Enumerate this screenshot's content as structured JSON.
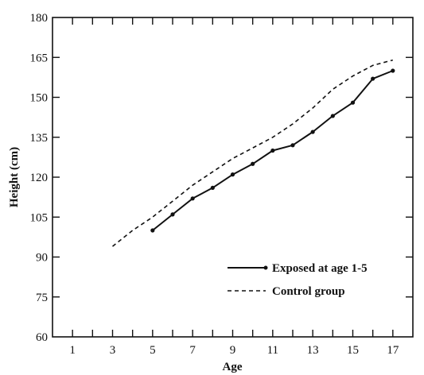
{
  "chart_data": {
    "type": "line",
    "title": "",
    "xlabel": "Age",
    "ylabel": "Height (cm)",
    "xlim": [
      0,
      18
    ],
    "ylim": [
      60,
      180
    ],
    "x_ticks": [
      "1",
      "3",
      "5",
      "7",
      "9",
      "11",
      "13",
      "15",
      "17"
    ],
    "y_ticks": [
      "60",
      "75",
      "90",
      "105",
      "120",
      "135",
      "150",
      "165",
      "180"
    ],
    "grid": false,
    "legend_position": "bottom-right",
    "series": [
      {
        "name": "Exposed at age 1-5",
        "style": "solid-with-markers",
        "color": "#111111",
        "x": [
          5,
          6,
          7,
          8,
          9,
          10,
          11,
          12,
          13,
          14,
          15,
          16,
          17
        ],
        "y": [
          100,
          106,
          112,
          116,
          121,
          125,
          130,
          132,
          137,
          143,
          148,
          157,
          160
        ]
      },
      {
        "name": "Control group",
        "style": "dashed",
        "color": "#111111",
        "x": [
          3,
          4,
          5,
          6,
          7,
          8,
          9,
          10,
          11,
          12,
          13,
          14,
          15,
          16,
          17
        ],
        "y": [
          94,
          100,
          105,
          111,
          117,
          122,
          127,
          131,
          135,
          140,
          146,
          153,
          158,
          162,
          164
        ]
      }
    ]
  }
}
